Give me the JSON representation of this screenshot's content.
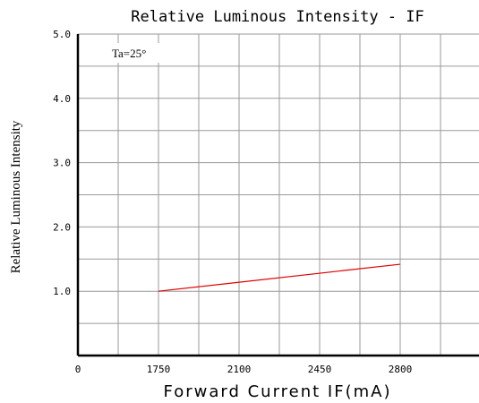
{
  "chart_data": {
    "type": "line",
    "title": "Relative Luminous Intensity - IF",
    "xlabel": "Forward Current IF(mA)",
    "ylabel": "Relative Luminous Intensity",
    "annotation": "Ta=25°",
    "x_tick_labels": [
      "0",
      "1750",
      "2100",
      "2450",
      "2800"
    ],
    "y_tick_labels": [
      "5.0",
      "4.0",
      "3.0",
      "2.0",
      "1.0"
    ],
    "grid": true,
    "series": [
      {
        "x": [
          1750,
          2800
        ],
        "y": [
          1.0,
          1.42
        ],
        "color": "#e00000"
      }
    ]
  }
}
